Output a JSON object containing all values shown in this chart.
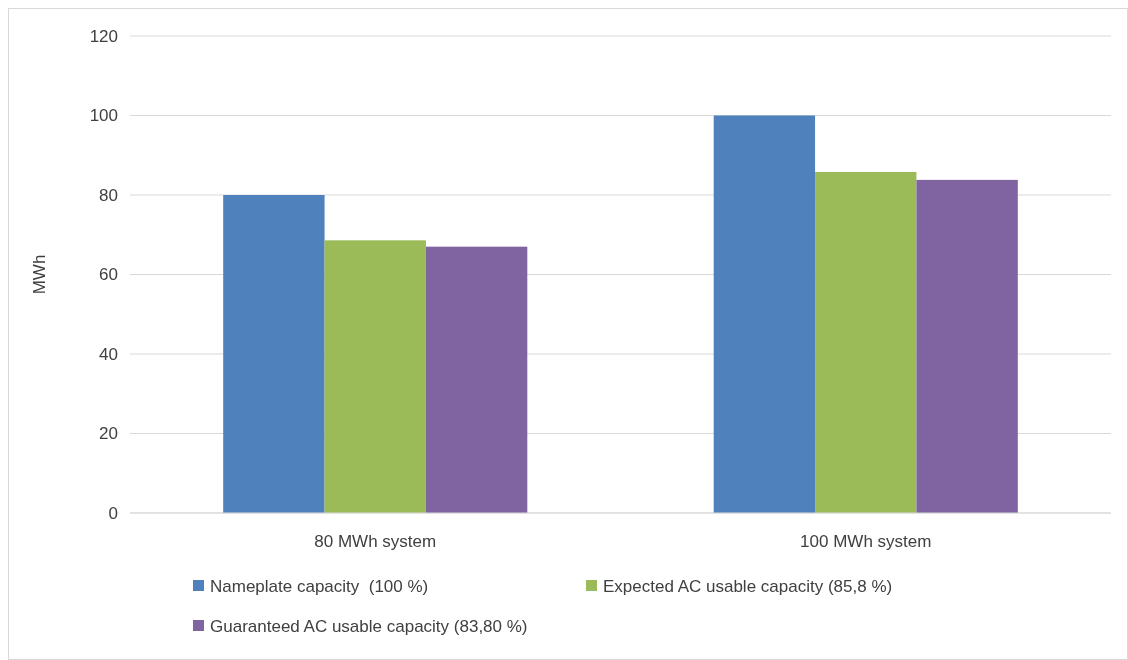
{
  "chart_data": {
    "type": "bar",
    "ylabel": "MWh",
    "categories": [
      "80 MWh system",
      "100 MWh system"
    ],
    "series": [
      {
        "name": "Nameplate capacity  (100 %)",
        "color": "#4f81bd",
        "values": [
          80,
          100
        ]
      },
      {
        "name": "Expected AC usable capacity (85,8 %)",
        "color": "#9bbb59",
        "values": [
          68.6,
          85.8
        ]
      },
      {
        "name": "Guaranteed AC usable capacity (83,80 %)",
        "color": "#8064a2",
        "values": [
          67,
          83.8
        ]
      }
    ],
    "ylim": [
      0,
      120
    ],
    "yticks": [
      0,
      20,
      40,
      60,
      80,
      100,
      120
    ],
    "grid": "y",
    "legend": "bottom"
  }
}
